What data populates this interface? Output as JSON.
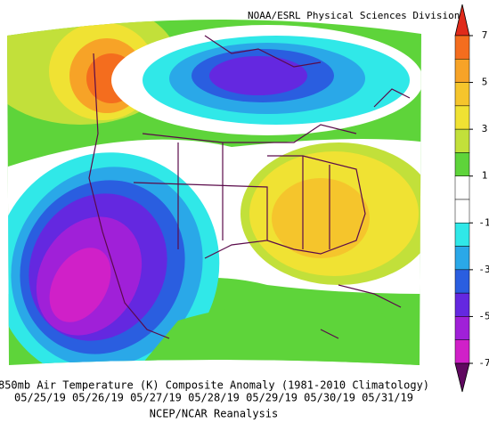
{
  "header": {
    "source": "NOAA/ESRL Physical Sciences Division"
  },
  "caption": {
    "title": "850mb Air Temperature (K) Composite Anomaly (1981-2010 Climatology)",
    "dates": "05/25/19 05/26/19 05/27/19 05/28/19 05/29/19 05/30/19 05/31/19",
    "source": "NCEP/NCAR Reanalysis"
  },
  "colorbar": {
    "ticks": [
      7,
      5,
      3,
      1,
      -1,
      -3,
      -5,
      -7
    ],
    "colors": [
      "#e02a1a",
      "#f46d1e",
      "#f7a327",
      "#f5c52c",
      "#f0e233",
      "#c2e03a",
      "#5ed43a",
      "#ffffff",
      "#ffffff",
      "#30e8e8",
      "#2aa8e8",
      "#2a5ee0",
      "#6428e0",
      "#a020d8",
      "#d020c8",
      "#600860"
    ]
  }
}
